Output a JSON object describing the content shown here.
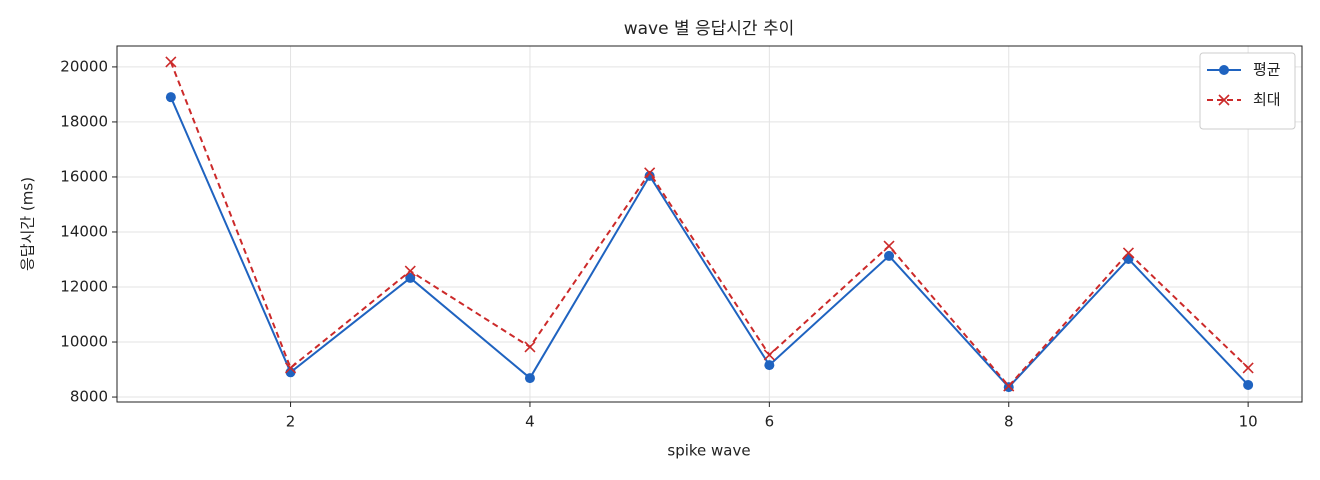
{
  "chart_data": {
    "type": "line",
    "title": "wave 별 응답시간 추이",
    "x_label": "spike wave",
    "y_label": "응답시간 (ms)",
    "x": [
      1,
      2,
      3,
      4,
      5,
      6,
      7,
      8,
      9,
      10
    ],
    "series": [
      {
        "name": "평균",
        "color": "#1f63c0",
        "marker": "circle",
        "linestyle": "solid",
        "values": [
          18900,
          8900,
          12330,
          8690,
          16040,
          9160,
          13130,
          8360,
          13020,
          8440
        ]
      },
      {
        "name": "최대",
        "color": "#cc2a2a",
        "marker": "x",
        "linestyle": "dashed",
        "values": [
          20180,
          9060,
          12580,
          9820,
          16150,
          9530,
          13490,
          8400,
          13240,
          9060
        ]
      }
    ],
    "xlim": [
      0.55,
      10.45
    ],
    "xticks": [
      2,
      4,
      6,
      8,
      10
    ],
    "ylim": [
      7820,
      20760
    ],
    "yticks": [
      8000,
      10000,
      12000,
      14000,
      16000,
      18000,
      20000
    ],
    "grid": true,
    "legend": "upper right"
  }
}
